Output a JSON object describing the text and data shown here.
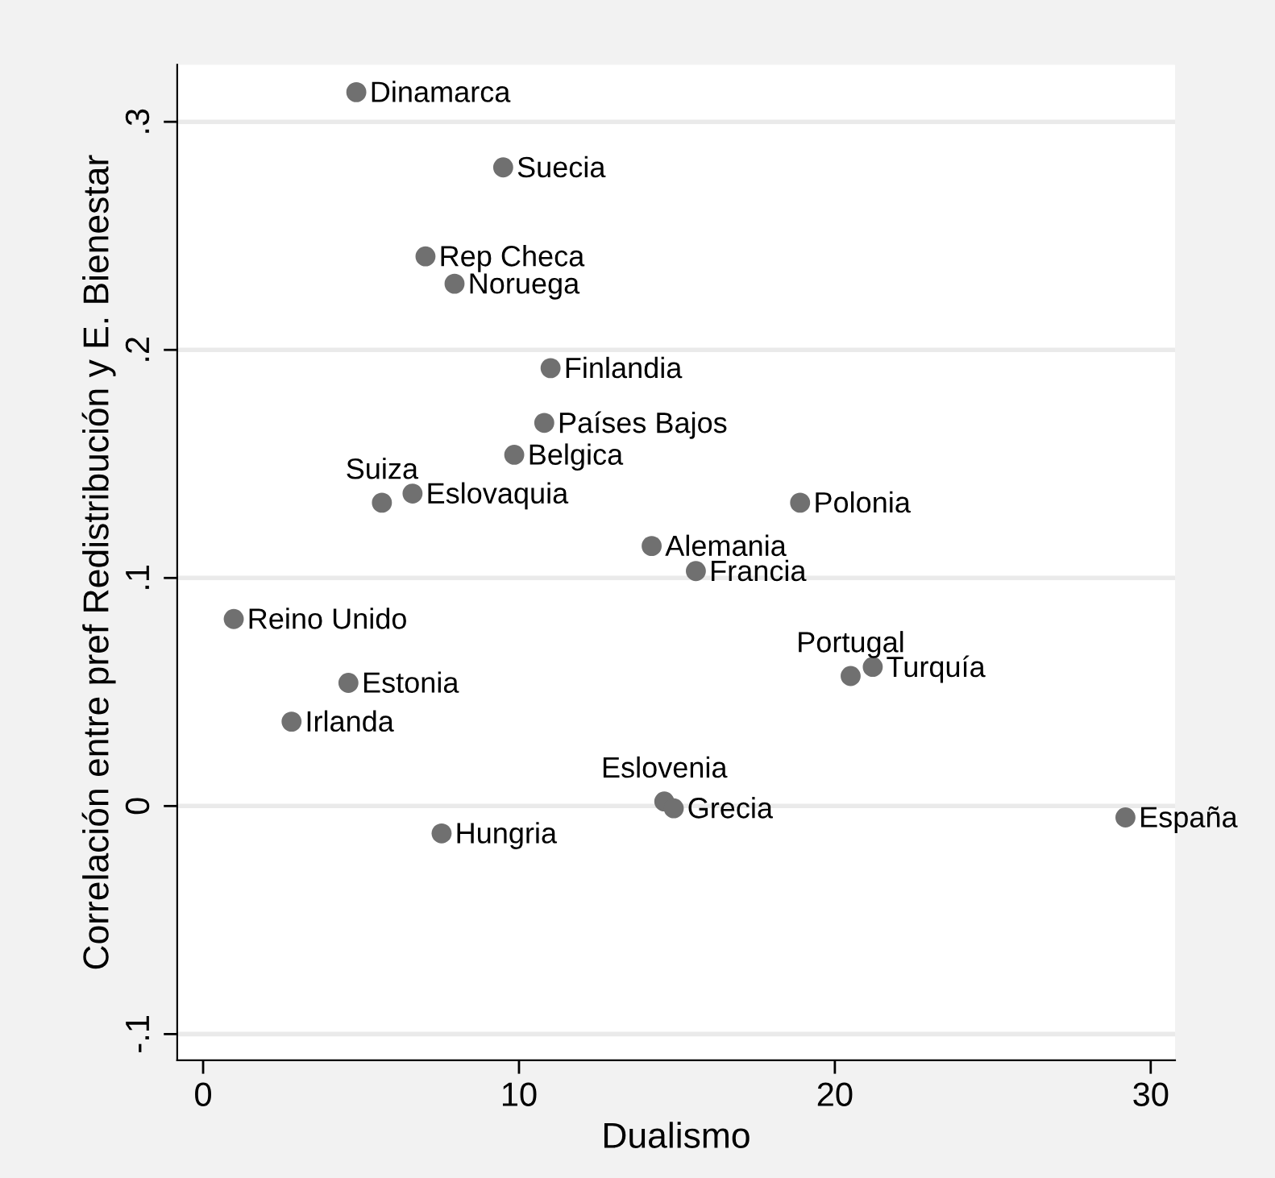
{
  "chart_data": {
    "type": "scatter",
    "xlabel": "Dualismo",
    "ylabel": "Correlación entre pref Redistribución y E. Bienestar",
    "x": [
      4.85,
      9.5,
      7.04,
      7.96,
      11.0,
      10.8,
      9.85,
      5.66,
      6.63,
      18.9,
      14.2,
      15.6,
      0.97,
      4.6,
      2.8,
      20.5,
      21.2,
      14.6,
      14.9,
      7.55,
      29.2
    ],
    "series": [
      {
        "color": "#707070",
        "values": [
          0.313,
          0.28,
          0.241,
          0.229,
          0.192,
          0.168,
          0.154,
          0.133,
          0.137,
          0.133,
          0.114,
          0.103,
          0.082,
          0.054,
          0.037,
          0.057,
          0.061,
          0.002,
          -0.001,
          -0.012,
          -0.005
        ]
      }
    ],
    "annotations": [
      {
        "text": "Dinamarca",
        "x": 4.85,
        "y": 0.313
      },
      {
        "text": "Suecia",
        "x": 9.5,
        "y": 0.28
      },
      {
        "text": "Rep Checa",
        "x": 7.04,
        "y": 0.241
      },
      {
        "text": "Noruega",
        "x": 7.96,
        "y": 0.229
      },
      {
        "text": "Finlandia",
        "x": 11.0,
        "y": 0.192
      },
      {
        "text": "Países Bajos",
        "x": 10.8,
        "y": 0.168
      },
      {
        "text": "Belgica",
        "x": 9.85,
        "y": 0.154
      },
      {
        "text": "Suiza",
        "x": 5.66,
        "y": 0.133
      },
      {
        "text": "Eslovaquia",
        "x": 6.63,
        "y": 0.137
      },
      {
        "text": "Polonia",
        "x": 18.9,
        "y": 0.133
      },
      {
        "text": "Alemania",
        "x": 14.2,
        "y": 0.114
      },
      {
        "text": "Francia",
        "x": 15.6,
        "y": 0.103
      },
      {
        "text": "Reino Unido",
        "x": 0.97,
        "y": 0.082
      },
      {
        "text": "Estonia",
        "x": 4.6,
        "y": 0.054
      },
      {
        "text": "Irlanda",
        "x": 2.8,
        "y": 0.037
      },
      {
        "text": "Portugal",
        "x": 20.5,
        "y": 0.057
      },
      {
        "text": "Turquía",
        "x": 21.2,
        "y": 0.061
      },
      {
        "text": "Eslovenia",
        "x": 14.6,
        "y": 0.002
      },
      {
        "text": "Grecia",
        "x": 14.9,
        "y": -0.001
      },
      {
        "text": "Hungria",
        "x": 7.55,
        "y": -0.012
      },
      {
        "text": "España",
        "x": 29.2,
        "y": -0.005
      }
    ],
    "xlim": [
      -0.82,
      30.77
    ],
    "ylim": [
      -0.1115,
      0.325
    ],
    "xticks": [
      0,
      10,
      20,
      30
    ],
    "yticks": [
      {
        "value": -0.1,
        "label": "-.1"
      },
      0,
      {
        "value": 0.1,
        "label": ".1"
      },
      {
        "value": 0.2,
        "label": ".2"
      },
      {
        "value": 0.3,
        "label": ".3"
      }
    ],
    "grid": "y",
    "marker": "circle"
  }
}
